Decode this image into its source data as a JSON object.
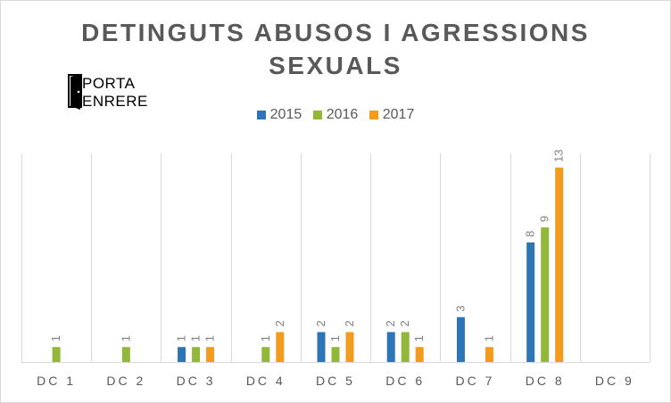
{
  "colors": {
    "series_2015": "#2e75b6",
    "series_2016": "#92b83b",
    "series_2017": "#f39b1f",
    "gridline": "#d9d9d9",
    "text": "#595959",
    "data_label": "#7f7f7f"
  },
  "logo": {
    "line1": "PORTA",
    "line2": "ENRERE",
    "icon": "door-icon"
  },
  "chart_data": {
    "type": "bar",
    "title": "DETINGUTS  ABUSOS  I AGRESSIONS SEXUALS",
    "title_lines": [
      "DETINGUTS  ABUSOS  I AGRESSIONS",
      "SEXUALS"
    ],
    "categories": [
      "DC 1",
      "DC 2",
      "DC 3",
      "DC 4",
      "DC 5",
      "DC 6",
      "DC 7",
      "DC 8",
      "DC 9"
    ],
    "series": [
      {
        "name": "2015",
        "values": [
          null,
          null,
          1,
          null,
          2,
          2,
          3,
          8,
          null
        ]
      },
      {
        "name": "2016",
        "values": [
          1,
          1,
          1,
          1,
          1,
          2,
          null,
          9,
          null
        ]
      },
      {
        "name": "2017",
        "values": [
          null,
          null,
          1,
          2,
          2,
          1,
          1,
          13,
          null
        ]
      }
    ],
    "ylim": [
      0,
      14
    ],
    "legend": "top-center",
    "grid": "vertical category separators",
    "xlabel": "",
    "ylabel": ""
  }
}
